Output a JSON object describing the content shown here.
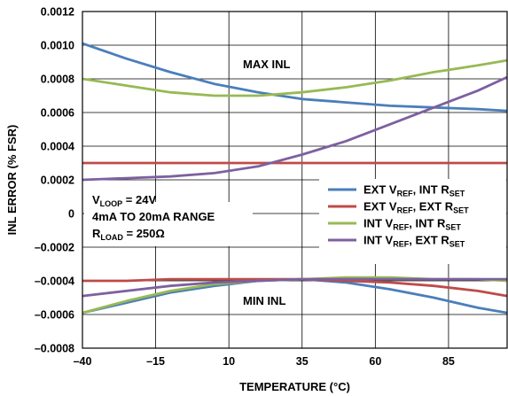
{
  "chart_data": {
    "type": "line",
    "xlabel": "TEMPERATURE (°C)",
    "ylabel": "INL ERROR (% FSR)",
    "xlim": [
      -40,
      105
    ],
    "ylim": [
      -0.0008,
      0.0012
    ],
    "xticks": [
      -40,
      -15,
      10,
      35,
      60,
      85
    ],
    "xtick_labels": [
      "–40",
      "–15",
      "10",
      "35",
      "60",
      "85"
    ],
    "yticks": [
      0.0012,
      0.001,
      0.0008,
      0.0006,
      0.0004,
      0.0002,
      0,
      -0.0002,
      -0.0004,
      -0.0006,
      -0.0008
    ],
    "ytick_labels": [
      "0.0012",
      "0.0010",
      "0.0008",
      "0.0006",
      "0.0004",
      "0.0002",
      "0",
      "–0.0002",
      "–0.0004",
      "–0.0006",
      "–0.0008"
    ],
    "grid": true,
    "legend_position": "right",
    "annotations": {
      "max_label": "MAX INL",
      "min_label": "MIN INL",
      "conditions": [
        {
          "parts": [
            {
              "t": "V",
              "sub": false
            },
            {
              "t": "LOOP",
              "sub": true
            },
            {
              "t": " = 24V",
              "sub": false
            }
          ]
        },
        {
          "parts": [
            {
              "t": "4mA TO 20mA RANGE",
              "sub": false
            }
          ]
        },
        {
          "parts": [
            {
              "t": "R",
              "sub": false
            },
            {
              "t": "LOAD",
              "sub": true
            },
            {
              "t": " = 250Ω",
              "sub": false
            }
          ]
        }
      ]
    },
    "series": [
      {
        "name_parts": [
          {
            "t": "EXT V",
            "sub": false
          },
          {
            "t": "REF",
            "sub": true
          },
          {
            "t": ", INT R",
            "sub": false
          },
          {
            "t": "SET",
            "sub": true
          }
        ],
        "color": "#4a7ebb",
        "max_x": [
          -40,
          -25,
          -10,
          5,
          20,
          35,
          50,
          65,
          80,
          95,
          105
        ],
        "max_y": [
          0.00101,
          0.00092,
          0.00084,
          0.00077,
          0.00072,
          0.00068,
          0.00066,
          0.00064,
          0.00063,
          0.00062,
          0.00061
        ],
        "min_x": [
          -40,
          -25,
          -10,
          5,
          20,
          35,
          50,
          65,
          80,
          95,
          105
        ],
        "min_y": [
          -0.00059,
          -0.00053,
          -0.00047,
          -0.00043,
          -0.0004,
          -0.00039,
          -0.00041,
          -0.00045,
          -0.0005,
          -0.00056,
          -0.00059
        ]
      },
      {
        "name_parts": [
          {
            "t": "EXT V",
            "sub": false
          },
          {
            "t": "REF",
            "sub": true
          },
          {
            "t": ", EXT R",
            "sub": false
          },
          {
            "t": "SET",
            "sub": true
          }
        ],
        "color": "#be4b48",
        "max_x": [
          -40,
          105
        ],
        "max_y": [
          0.0003,
          0.0003
        ],
        "min_x": [
          -40,
          -25,
          -10,
          5,
          20,
          35,
          50,
          65,
          80,
          95,
          105
        ],
        "min_y": [
          -0.0004,
          -0.0004,
          -0.00039,
          -0.00039,
          -0.00039,
          -0.00039,
          -0.0004,
          -0.00041,
          -0.00043,
          -0.00046,
          -0.00049
        ]
      },
      {
        "name_parts": [
          {
            "t": "INT V",
            "sub": false
          },
          {
            "t": "REF",
            "sub": true
          },
          {
            "t": ", INT R",
            "sub": false
          },
          {
            "t": "SET",
            "sub": true
          }
        ],
        "color": "#98b954",
        "max_x": [
          -40,
          -25,
          -10,
          5,
          20,
          35,
          50,
          65,
          80,
          95,
          105
        ],
        "max_y": [
          0.0008,
          0.00076,
          0.00072,
          0.0007,
          0.0007,
          0.00072,
          0.00075,
          0.00079,
          0.00084,
          0.00088,
          0.00091
        ],
        "min_x": [
          -40,
          -25,
          -10,
          5,
          20,
          35,
          50,
          65,
          80,
          95,
          105
        ],
        "min_y": [
          -0.00059,
          -0.00052,
          -0.00046,
          -0.00042,
          -0.0004,
          -0.00039,
          -0.00038,
          -0.00038,
          -0.00039,
          -0.00039,
          -0.0004
        ]
      },
      {
        "name_parts": [
          {
            "t": "INT V",
            "sub": false
          },
          {
            "t": "REF",
            "sub": true
          },
          {
            "t": ", EXT R",
            "sub": false
          },
          {
            "t": "SET",
            "sub": true
          }
        ],
        "color": "#7d60a0",
        "max_x": [
          -40,
          -25,
          -10,
          5,
          20,
          35,
          50,
          65,
          80,
          95,
          105
        ],
        "max_y": [
          0.0002,
          0.00021,
          0.00022,
          0.00024,
          0.00028,
          0.00035,
          0.00043,
          0.00053,
          0.00063,
          0.00073,
          0.00081
        ],
        "min_x": [
          -40,
          -25,
          -10,
          5,
          20,
          35,
          50,
          65,
          80,
          95,
          105
        ],
        "min_y": [
          -0.00049,
          -0.00046,
          -0.00043,
          -0.00041,
          -0.0004,
          -0.00039,
          -0.00039,
          -0.00039,
          -0.00039,
          -0.00039,
          -0.00039
        ]
      }
    ]
  }
}
